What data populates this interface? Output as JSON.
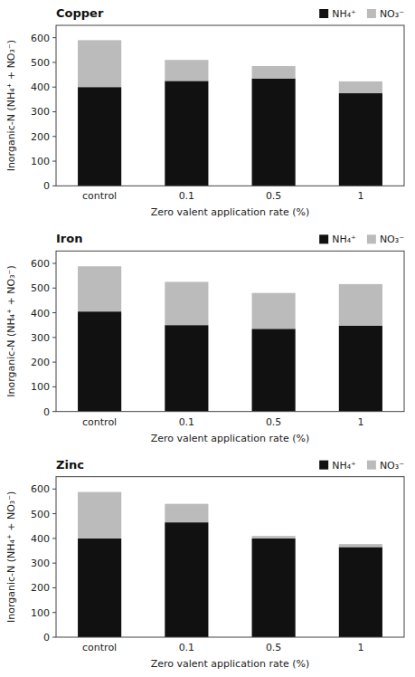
{
  "chart_data": [
    {
      "type": "bar",
      "stacked": true,
      "title": "Copper",
      "categories": [
        "control",
        "0.1",
        "0.5",
        "1"
      ],
      "series": [
        {
          "name": "NH₄⁺",
          "color": "#111111",
          "values": [
            400,
            425,
            435,
            375
          ]
        },
        {
          "name": "NO₃⁻",
          "color": "#bbbbbb",
          "values": [
            190,
            85,
            50,
            48
          ]
        }
      ],
      "xlabel": "Zero valent application rate (%)",
      "ylabel": "Inorganic-N (NH₄⁺ + NO₃⁻)",
      "ylim": [
        0,
        650
      ],
      "yticks": [
        0,
        100,
        200,
        300,
        400,
        500,
        600
      ],
      "legend": "upper right",
      "grid": false
    },
    {
      "type": "bar",
      "stacked": true,
      "title": "Iron",
      "categories": [
        "control",
        "0.1",
        "0.5",
        "1"
      ],
      "series": [
        {
          "name": "NH₄⁺",
          "color": "#111111",
          "values": [
            405,
            350,
            335,
            348
          ]
        },
        {
          "name": "NO₃⁻",
          "color": "#bbbbbb",
          "values": [
            183,
            175,
            145,
            168
          ]
        }
      ],
      "xlabel": "Zero valent application rate (%)",
      "ylabel": "Inorganic-N (NH₄⁺ + NO₃⁻)",
      "ylim": [
        0,
        650
      ],
      "yticks": [
        0,
        100,
        200,
        300,
        400,
        500,
        600
      ],
      "legend": "upper right",
      "grid": false
    },
    {
      "type": "bar",
      "stacked": true,
      "title": "Zinc",
      "categories": [
        "control",
        "0.1",
        "0.5",
        "1"
      ],
      "series": [
        {
          "name": "NH₄⁺",
          "color": "#111111",
          "values": [
            400,
            465,
            400,
            365
          ]
        },
        {
          "name": "NO₃⁻",
          "color": "#bbbbbb",
          "values": [
            188,
            75,
            10,
            12
          ]
        }
      ],
      "xlabel": "Zero valent application rate (%)",
      "ylabel": "Inorganic-N (NH₄⁺ + NO₃⁻)",
      "ylim": [
        0,
        650
      ],
      "yticks": [
        0,
        100,
        200,
        300,
        400,
        500,
        600
      ],
      "legend": "upper right",
      "grid": false
    }
  ]
}
